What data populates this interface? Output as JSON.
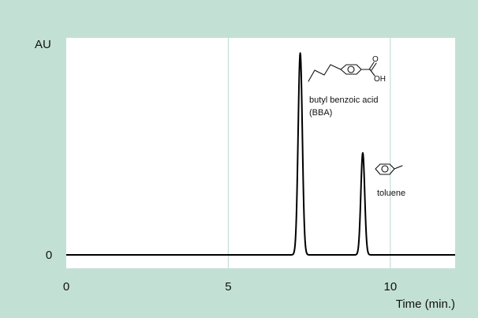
{
  "chart_data": {
    "type": "line",
    "title": "",
    "ylabel": "AU",
    "xlabel": "Time (min.)",
    "xlim": [
      0,
      12
    ],
    "ylim": [
      0,
      1
    ],
    "x_ticks": [
      {
        "value": 0,
        "label": "0"
      },
      {
        "value": 5,
        "label": "5"
      },
      {
        "value": 10,
        "label": "10"
      }
    ],
    "y_ticks": [
      {
        "value": 0,
        "label": "0"
      }
    ],
    "grid": {
      "vertical": [
        5,
        10
      ],
      "horizontal": false
    },
    "colors": {
      "background": "#c3e0d4",
      "plot": "#ffffff",
      "grid": "#c3e0d4",
      "line": "#000000"
    },
    "peaks": [
      {
        "center": 7.22,
        "height": 0.93,
        "width": 0.065
      },
      {
        "center": 9.15,
        "height": 0.47,
        "width": 0.06
      }
    ],
    "annotations": [
      {
        "text": "butyl benzoic acid",
        "x": 7.22,
        "structure": "butyl-benzoic-acid"
      },
      {
        "text": "(BBA)",
        "x": 7.22
      },
      {
        "text": "toluene",
        "x": 9.15,
        "structure": "toluene"
      }
    ],
    "structure_labels": {
      "oxygen": "O",
      "hydroxyl": "OH"
    }
  }
}
